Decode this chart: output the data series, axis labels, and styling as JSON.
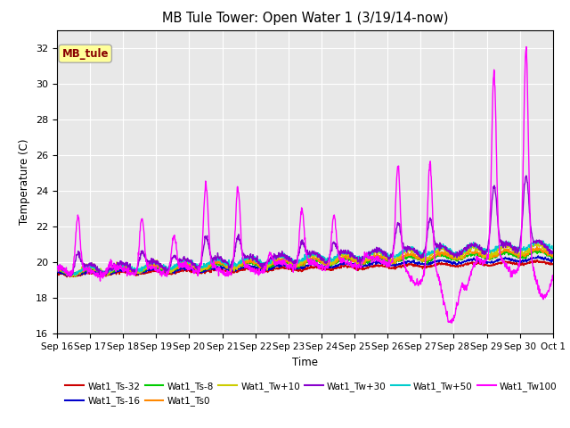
{
  "title": "MB Tule Tower: Open Water 1 (3/19/14-now)",
  "xlabel": "Time",
  "ylabel": "Temperature (C)",
  "ylim": [
    16,
    33
  ],
  "yticks": [
    16,
    18,
    20,
    22,
    24,
    26,
    28,
    30,
    32
  ],
  "n_days": 15.5,
  "xtick_labels": [
    "Sep 16",
    "Sep 17",
    "Sep 18",
    "Sep 19",
    "Sep 20",
    "Sep 21",
    "Sep 22",
    "Sep 23",
    "Sep 24",
    "Sep 25",
    "Sep 26",
    "Sep 27",
    "Sep 28",
    "Sep 29",
    "Sep 30",
    "Oct 1"
  ],
  "series_colors": {
    "Wat1_Ts-32": "#cc0000",
    "Wat1_Ts-16": "#0000cc",
    "Wat1_Ts-8": "#00cc00",
    "Wat1_Ts0": "#ff8800",
    "Wat1_Tw+10": "#cccc00",
    "Wat1_Tw+30": "#8800cc",
    "Wat1_Tw+50": "#00cccc",
    "Wat1_Tw100": "#ff00ff"
  },
  "annotation_text": "MB_tule",
  "plot_bg_color": "#ffffff",
  "axes_bg_color": "#e8e8e8"
}
